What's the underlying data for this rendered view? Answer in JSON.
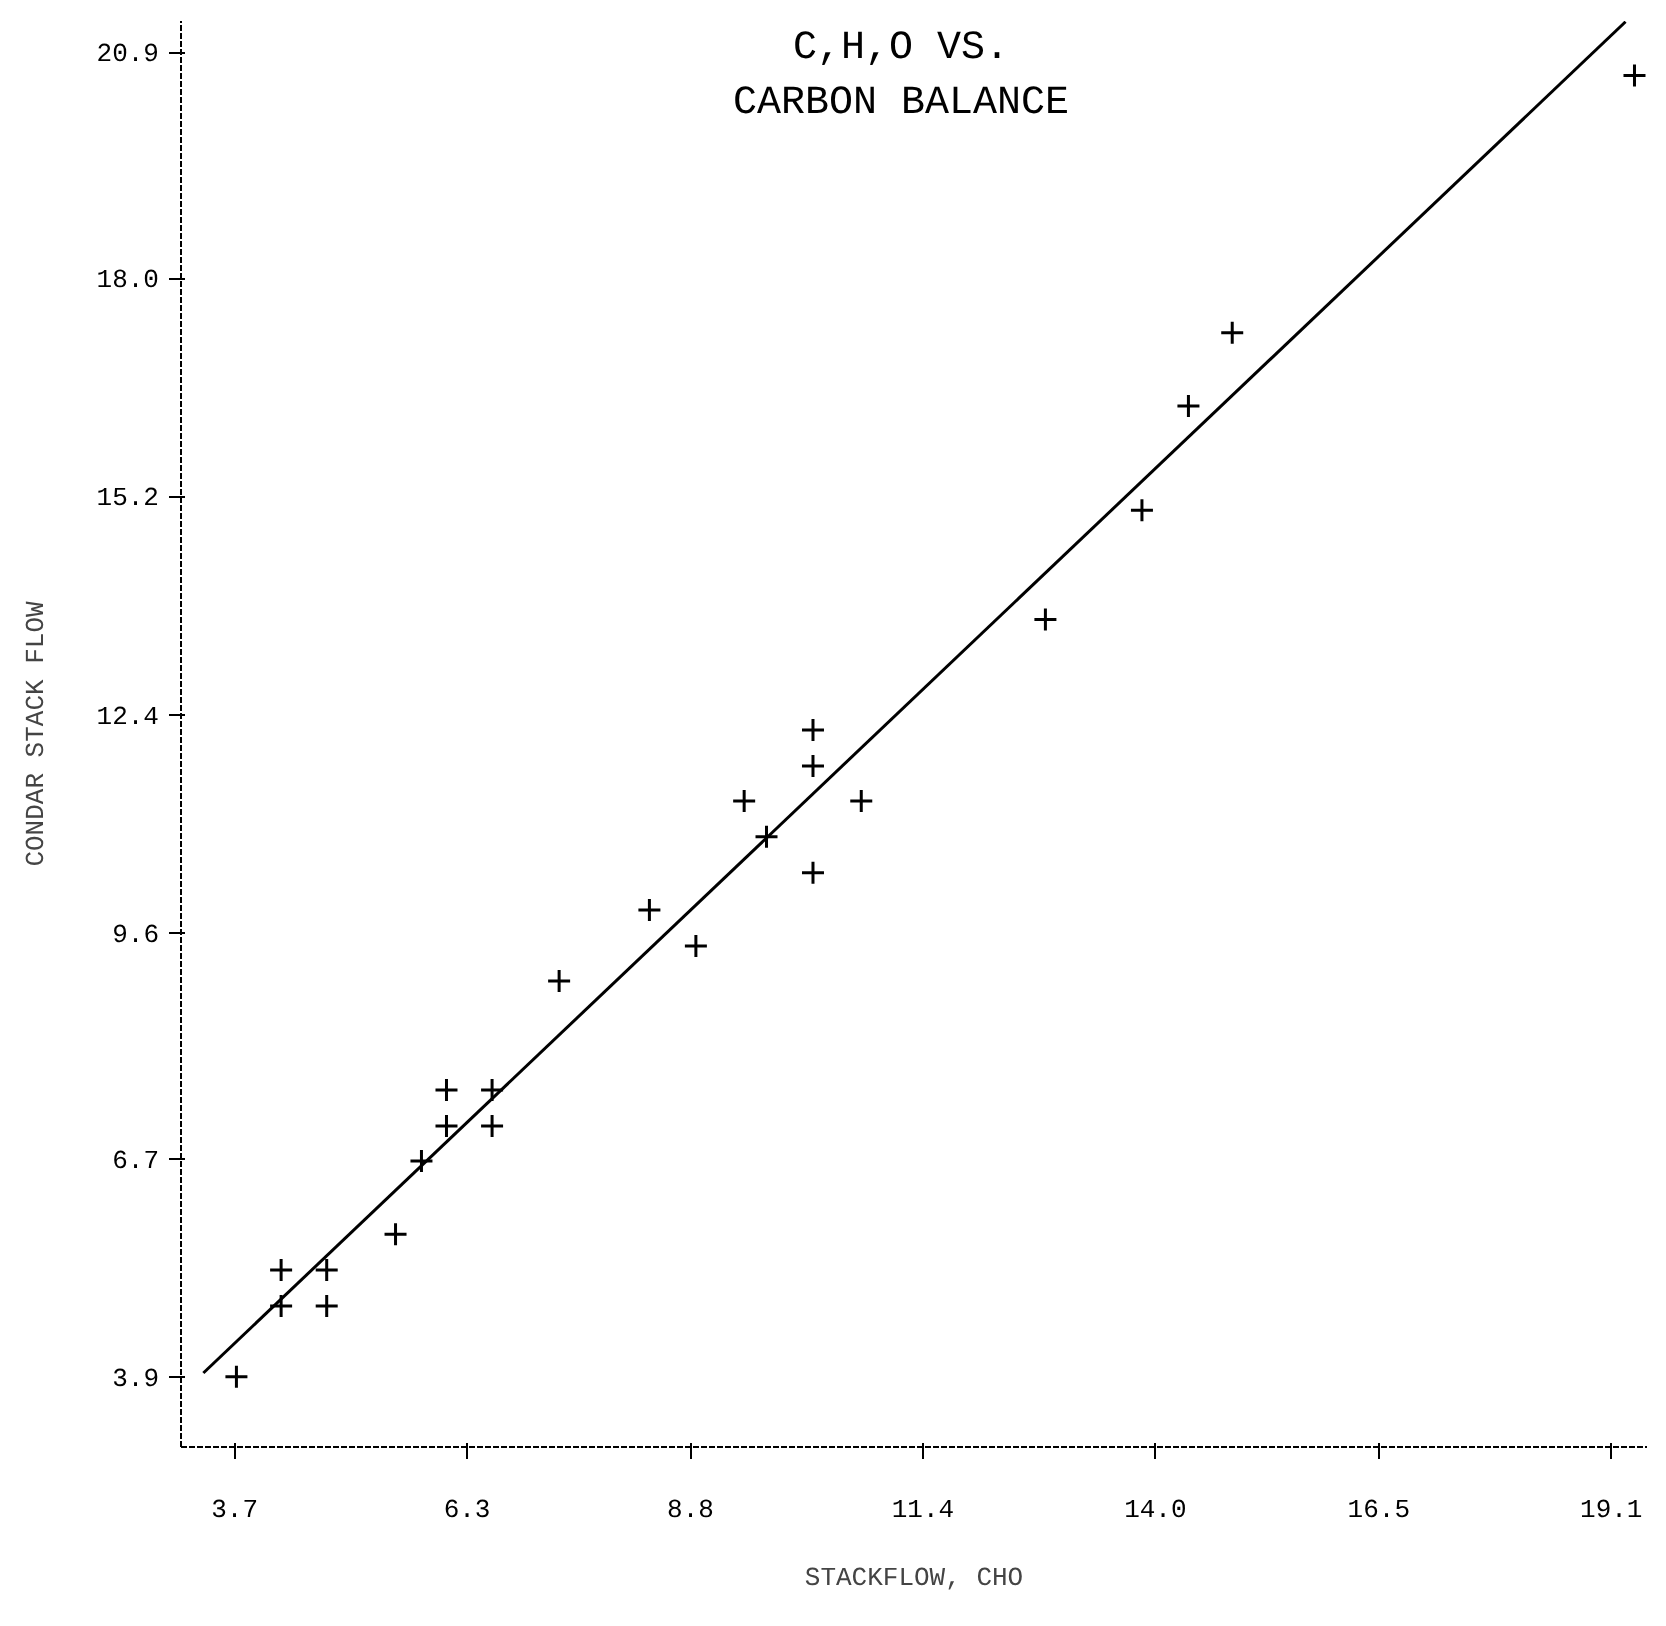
{
  "chart_data": {
    "type": "scatter",
    "title": "C,H,O VS. CARBON BALANCE",
    "xlabel": "STACKFLOW, CHO",
    "ylabel": "CONDAR STACK FLOW",
    "xlim": [
      3.1,
      19.5
    ],
    "ylim": [
      3.0,
      21.3
    ],
    "xticks": [
      3.7,
      6.3,
      8.8,
      11.4,
      {
        "value": 14,
        "label": "14.0"
      },
      16.5,
      19.1
    ],
    "yticks": [
      3.9,
      6.7,
      9.6,
      12.4,
      15.2,
      {
        "value": 18,
        "label": "18.0"
      },
      20.9
    ],
    "grid": false,
    "series": [
      {
        "marker": "cross",
        "color": "#000000",
        "x": [
          19.36,
          14.86,
          14.37,
          13.85,
          12.77,
          10.17,
          10.17,
          10.71,
          9.4,
          9.65,
          10.17,
          8.34,
          8.86,
          7.33,
          6.07,
          6.58,
          6.07,
          6.58,
          5.79,
          5.5,
          4.22,
          4.73,
          4.22,
          4.73,
          3.72
        ],
        "values": [
          20.6,
          17.3,
          16.36,
          15.02,
          13.62,
          12.2,
          11.74,
          11.29,
          11.29,
          10.83,
          10.37,
          9.89,
          9.43,
          8.98,
          7.58,
          7.58,
          7.12,
          7.12,
          6.67,
          5.73,
          5.27,
          5.27,
          4.81,
          4.81,
          3.9
        ]
      },
      {
        "type": "line",
        "color": "#000000",
        "line_style": "solid",
        "x": [
          3.35,
          19.26
        ],
        "values": [
          3.95,
          21.29
        ]
      }
    ]
  }
}
